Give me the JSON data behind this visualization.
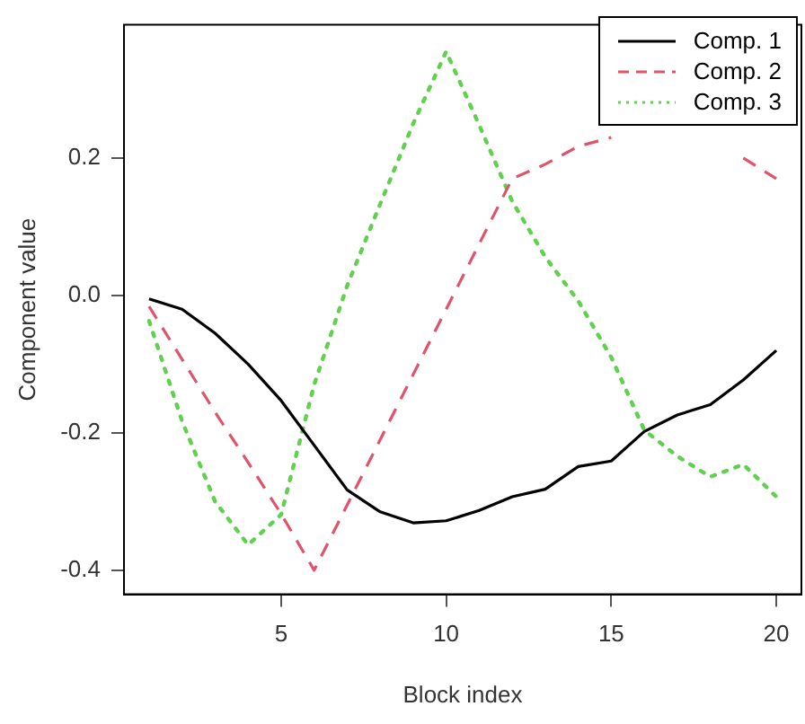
{
  "chart_data": {
    "type": "line",
    "xlabel": "Block index",
    "ylabel": "Component value",
    "x": [
      1,
      2,
      3,
      4,
      5,
      6,
      7,
      8,
      9,
      10,
      11,
      12,
      13,
      14,
      15,
      16,
      17,
      18,
      19,
      20
    ],
    "xlim": [
      0.24,
      20.76
    ],
    "xticks": [
      5,
      10,
      15,
      20
    ],
    "ylim": [
      -0.435,
      0.394
    ],
    "yticks": [
      {
        "value": -0.4,
        "label": "-0.4"
      },
      {
        "value": -0.2,
        "label": "-0.2"
      },
      {
        "value": 0,
        "label": "0.0"
      },
      {
        "value": 0.2,
        "label": "0.2"
      }
    ],
    "grid": false,
    "legend": "top right",
    "marker": "none",
    "series": [
      {
        "name": "Comp. 1",
        "color": "#000000",
        "line_style": "solid",
        "values": [
          -0.005,
          -0.02,
          -0.055,
          -0.1,
          -0.153,
          -0.218,
          -0.283,
          -0.315,
          -0.331,
          -0.328,
          -0.313,
          -0.293,
          -0.282,
          -0.249,
          -0.241,
          -0.198,
          -0.174,
          -0.159,
          -0.123,
          -0.08
        ]
      },
      {
        "name": "Comp. 2",
        "color": "#df536b",
        "line_style": "dashed",
        "values": [
          -0.016,
          -0.093,
          -0.17,
          -0.243,
          -0.318,
          -0.4,
          -0.305,
          -0.21,
          -0.115,
          -0.02,
          0.075,
          0.17,
          0.191,
          0.217,
          0.23,
          null,
          null,
          null,
          0.2,
          0.17
        ]
      },
      {
        "name": "Comp. 3",
        "color": "#61d04f",
        "line_style": "dotted",
        "values": [
          -0.037,
          -0.183,
          -0.3,
          -0.363,
          -0.319,
          -0.13,
          0.014,
          0.133,
          0.25,
          0.355,
          0.248,
          0.137,
          0.056,
          -0.008,
          -0.09,
          -0.196,
          -0.234,
          -0.264,
          -0.246,
          -0.293
        ]
      }
    ]
  }
}
